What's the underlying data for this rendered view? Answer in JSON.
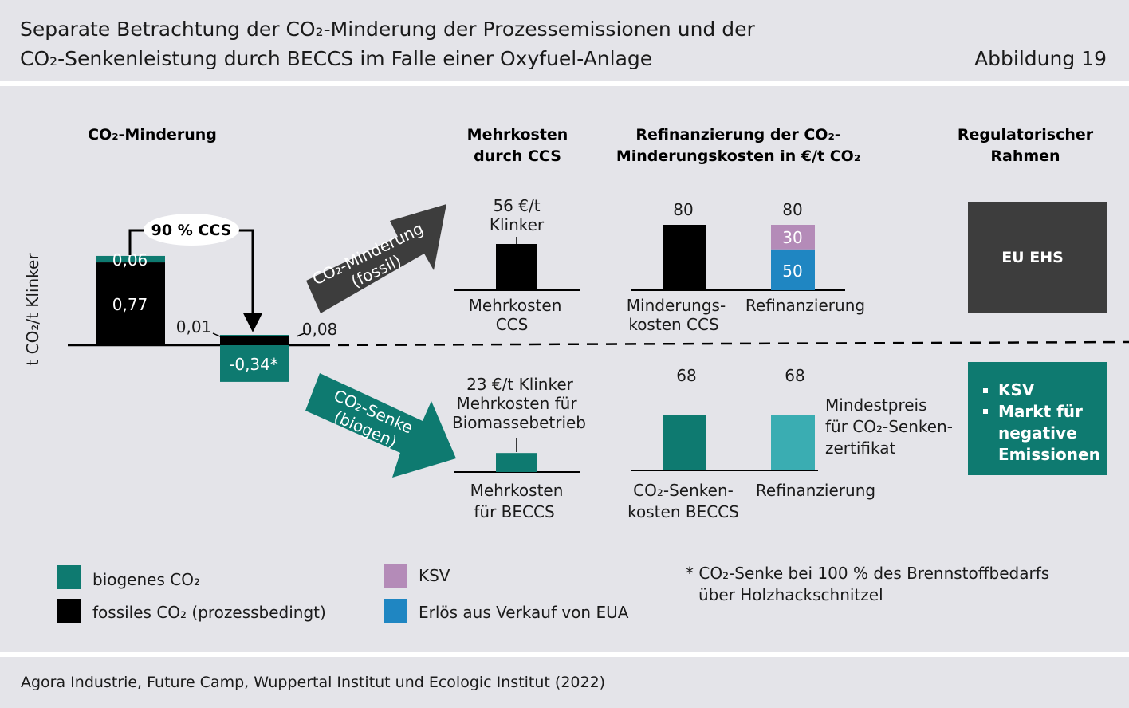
{
  "header": {
    "title_line1": "Separate Betrachtung der CO₂-Minderung der Prozessemissionen und der",
    "title_line2": "CO₂-Senkenleistung durch BECCS im Falle einer Oxyfuel-Anlage",
    "figure_label": "Abbildung 19"
  },
  "footer": {
    "source": "Agora Industrie, Future Camp, Wuppertal Institut und Ecologic Institut (2022)"
  },
  "colors": {
    "background": "#e4e4e9",
    "biogenic": "#0e7a70",
    "fossil": "#000000",
    "ksv": "#b48bb8",
    "eua": "#1f86c2",
    "refinancing_sink": "#3aadb2",
    "regulatory_box": "#3d3d3d",
    "arrow_fossil": "#3d3d3d"
  },
  "chart_data": [
    {
      "type": "bar",
      "title": "CO₂-Minderung",
      "ylabel": "t CO₂/t Klinker",
      "annotation": "90 % CCS",
      "bars": [
        {
          "segments": [
            {
              "kind": "fossil",
              "value": 0.77,
              "label": "0,77"
            },
            {
              "kind": "biogenic",
              "value": 0.06,
              "label": "0,06"
            }
          ]
        },
        {
          "segments": [
            {
              "kind": "fossil",
              "value": 0.01,
              "label": "0,01"
            },
            {
              "kind": "biogenic",
              "value": 0.08,
              "label": "0,08"
            },
            {
              "kind": "biogenic",
              "value": -0.34,
              "label": "-0,34*"
            }
          ]
        }
      ]
    },
    {
      "type": "bar",
      "title": "Mehrkosten durch CCS",
      "rows": [
        {
          "arrow": "CO₂-Minderung (fossil)",
          "arrow_line1": "CO₂-Minderung",
          "arrow_line2": "(fossil)",
          "value_label_line1": "56 €/t",
          "value_label_line2": "Klinker",
          "value_label_line3": "",
          "value": 56,
          "category_line1": "Mehrkosten",
          "category_line2": "CCS",
          "color": "fossil"
        },
        {
          "arrow": "CO₂-Senke (biogen)",
          "arrow_line1": "CO₂-Senke",
          "arrow_line2": "(biogen)",
          "value_label_line1": "23 €/t Klinker",
          "value_label_line2": "Mehrkosten für",
          "value_label_line3": "Biomassebetrieb",
          "value": 23,
          "category_line1": "Mehrkosten",
          "category_line2": "für BECCS",
          "color": "biogenic"
        }
      ]
    },
    {
      "type": "bar",
      "title": "Refinanzierung der CO₂-Minderungskosten in €/t CO₂",
      "title_line1": "Refinanzierung der CO₂-",
      "title_line2": "Minderungskosten in €/t CO₂",
      "rows": [
        {
          "bars": [
            {
              "category_line1": "Minderungs-",
              "category_line2": "kosten CCS",
              "total": 80,
              "total_label": "80",
              "segments": [
                {
                  "kind": "fossil",
                  "value": 80,
                  "label": ""
                }
              ]
            },
            {
              "category_line1": "Refinanzierung",
              "category_line2": "",
              "total": 80,
              "total_label": "80",
              "segments": [
                {
                  "kind": "eua",
                  "value": 50,
                  "label": "50"
                },
                {
                  "kind": "ksv",
                  "value": 30,
                  "label": "30"
                }
              ]
            }
          ]
        },
        {
          "bars": [
            {
              "category_line1": "CO₂-Senken-",
              "category_line2": "kosten BECCS",
              "total": 68,
              "total_label": "68",
              "segments": [
                {
                  "kind": "biogenic",
                  "value": 68,
                  "label": ""
                }
              ]
            },
            {
              "category_line1": "Refinanzierung",
              "category_line2": "",
              "total": 68,
              "total_label": "68",
              "segments": [
                {
                  "kind": "refinancing_sink",
                  "value": 68,
                  "label": ""
                }
              ]
            }
          ],
          "note_line1": "Mindestpreis",
          "note_line2": "für CO₂-Senken-",
          "note_line3": "zertifikat"
        }
      ]
    }
  ],
  "regulatory": {
    "title_line1": "Regulatorischer",
    "title_line2": "Rahmen",
    "fossil_box": "EU EHS",
    "sink_items": [
      "KSV",
      "Markt für",
      "negative",
      "Emissionen"
    ]
  },
  "legend": {
    "items": [
      {
        "label": "biogenes CO₂",
        "kind": "biogenic"
      },
      {
        "label": "fossiles CO₂ (prozessbedingt)",
        "kind": "fossil"
      },
      {
        "label": "KSV",
        "kind": "ksv"
      },
      {
        "label": "Erlös aus Verkauf von EUA",
        "kind": "eua"
      }
    ],
    "footnote_line1": "* CO₂-Senke bei 100 % des Brennstoffbedarfs",
    "footnote_line2": "über Holzhackschnitzel"
  }
}
